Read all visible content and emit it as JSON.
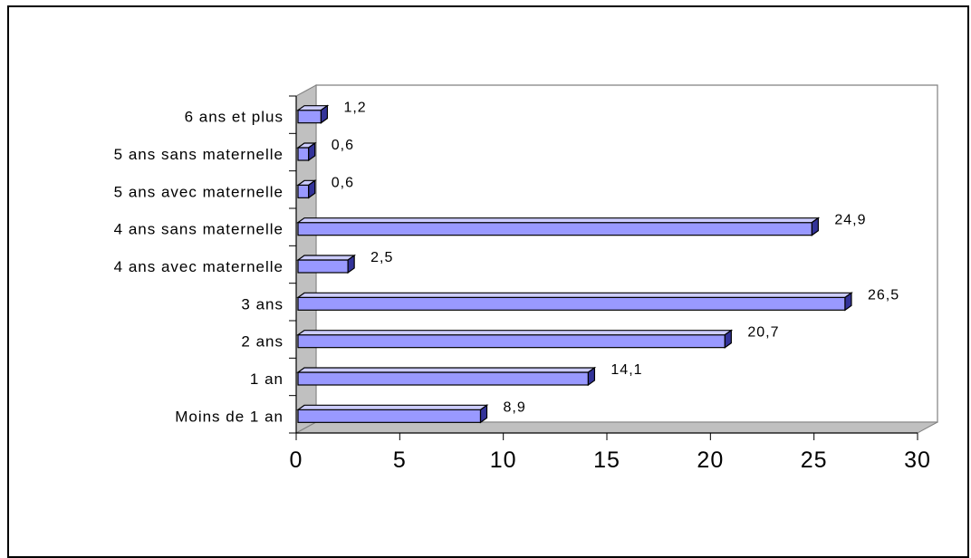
{
  "chart_data": {
    "type": "bar",
    "orientation": "horizontal",
    "style": "3d",
    "categories": [
      "Moins de 1 an",
      "1 an",
      "2 ans",
      "3 ans",
      "4 ans avec maternelle",
      "4 ans sans maternelle",
      "5 ans avec maternelle",
      "5 ans sans maternelle",
      "6 ans et plus"
    ],
    "values": [
      8.9,
      14.1,
      20.7,
      26.5,
      2.5,
      24.9,
      0.6,
      0.6,
      1.2
    ],
    "value_labels": [
      "8,9",
      "14,1",
      "20,7",
      "26,5",
      "2,5",
      "24,9",
      "0,6",
      "0,6",
      "1,2"
    ],
    "xlim": [
      0,
      30
    ],
    "x_ticks": [
      "0",
      "5",
      "10",
      "15",
      "20",
      "25",
      "30"
    ],
    "grid": false,
    "legend": false,
    "colors": {
      "bar_face": "#9999ff",
      "bar_top": "#ccccff",
      "bar_side": "#333399",
      "wall": "#c0c0c0"
    }
  }
}
